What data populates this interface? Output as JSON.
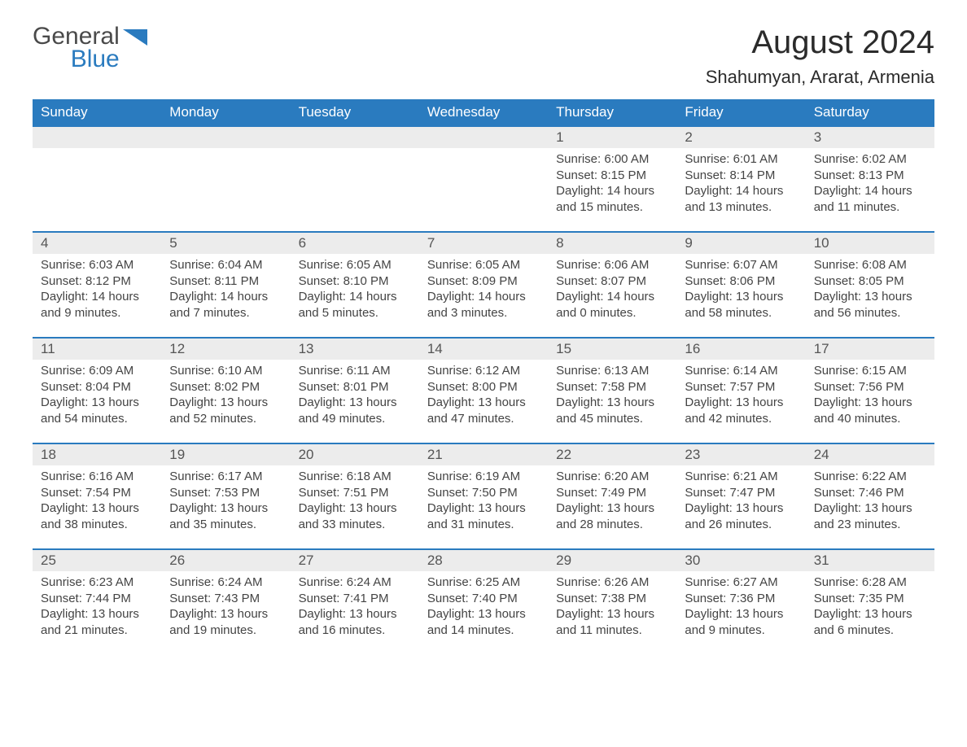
{
  "logo": {
    "word1": "General",
    "word2": "Blue"
  },
  "header": {
    "month_title": "August 2024",
    "location": "Shahumyan, Ararat, Armenia"
  },
  "colors": {
    "header_blue": "#2a7bbf",
    "band_gray": "#ececec",
    "text_dark": "#333333",
    "text_mid": "#555555",
    "background": "#ffffff"
  },
  "typography": {
    "month_title_fontsize": 40,
    "location_fontsize": 22,
    "weekday_fontsize": 17,
    "daynum_fontsize": 17,
    "body_fontsize": 15
  },
  "weekdays": [
    "Sunday",
    "Monday",
    "Tuesday",
    "Wednesday",
    "Thursday",
    "Friday",
    "Saturday"
  ],
  "weeks": [
    [
      null,
      null,
      null,
      null,
      {
        "n": "1",
        "sunrise": "6:00 AM",
        "sunset": "8:15 PM",
        "dl_h": "14",
        "dl_m": "15"
      },
      {
        "n": "2",
        "sunrise": "6:01 AM",
        "sunset": "8:14 PM",
        "dl_h": "14",
        "dl_m": "13"
      },
      {
        "n": "3",
        "sunrise": "6:02 AM",
        "sunset": "8:13 PM",
        "dl_h": "14",
        "dl_m": "11"
      }
    ],
    [
      {
        "n": "4",
        "sunrise": "6:03 AM",
        "sunset": "8:12 PM",
        "dl_h": "14",
        "dl_m": "9"
      },
      {
        "n": "5",
        "sunrise": "6:04 AM",
        "sunset": "8:11 PM",
        "dl_h": "14",
        "dl_m": "7"
      },
      {
        "n": "6",
        "sunrise": "6:05 AM",
        "sunset": "8:10 PM",
        "dl_h": "14",
        "dl_m": "5"
      },
      {
        "n": "7",
        "sunrise": "6:05 AM",
        "sunset": "8:09 PM",
        "dl_h": "14",
        "dl_m": "3"
      },
      {
        "n": "8",
        "sunrise": "6:06 AM",
        "sunset": "8:07 PM",
        "dl_h": "14",
        "dl_m": "0"
      },
      {
        "n": "9",
        "sunrise": "6:07 AM",
        "sunset": "8:06 PM",
        "dl_h": "13",
        "dl_m": "58"
      },
      {
        "n": "10",
        "sunrise": "6:08 AM",
        "sunset": "8:05 PM",
        "dl_h": "13",
        "dl_m": "56"
      }
    ],
    [
      {
        "n": "11",
        "sunrise": "6:09 AM",
        "sunset": "8:04 PM",
        "dl_h": "13",
        "dl_m": "54"
      },
      {
        "n": "12",
        "sunrise": "6:10 AM",
        "sunset": "8:02 PM",
        "dl_h": "13",
        "dl_m": "52"
      },
      {
        "n": "13",
        "sunrise": "6:11 AM",
        "sunset": "8:01 PM",
        "dl_h": "13",
        "dl_m": "49"
      },
      {
        "n": "14",
        "sunrise": "6:12 AM",
        "sunset": "8:00 PM",
        "dl_h": "13",
        "dl_m": "47"
      },
      {
        "n": "15",
        "sunrise": "6:13 AM",
        "sunset": "7:58 PM",
        "dl_h": "13",
        "dl_m": "45"
      },
      {
        "n": "16",
        "sunrise": "6:14 AM",
        "sunset": "7:57 PM",
        "dl_h": "13",
        "dl_m": "42"
      },
      {
        "n": "17",
        "sunrise": "6:15 AM",
        "sunset": "7:56 PM",
        "dl_h": "13",
        "dl_m": "40"
      }
    ],
    [
      {
        "n": "18",
        "sunrise": "6:16 AM",
        "sunset": "7:54 PM",
        "dl_h": "13",
        "dl_m": "38"
      },
      {
        "n": "19",
        "sunrise": "6:17 AM",
        "sunset": "7:53 PM",
        "dl_h": "13",
        "dl_m": "35"
      },
      {
        "n": "20",
        "sunrise": "6:18 AM",
        "sunset": "7:51 PM",
        "dl_h": "13",
        "dl_m": "33"
      },
      {
        "n": "21",
        "sunrise": "6:19 AM",
        "sunset": "7:50 PM",
        "dl_h": "13",
        "dl_m": "31"
      },
      {
        "n": "22",
        "sunrise": "6:20 AM",
        "sunset": "7:49 PM",
        "dl_h": "13",
        "dl_m": "28"
      },
      {
        "n": "23",
        "sunrise": "6:21 AM",
        "sunset": "7:47 PM",
        "dl_h": "13",
        "dl_m": "26"
      },
      {
        "n": "24",
        "sunrise": "6:22 AM",
        "sunset": "7:46 PM",
        "dl_h": "13",
        "dl_m": "23"
      }
    ],
    [
      {
        "n": "25",
        "sunrise": "6:23 AM",
        "sunset": "7:44 PM",
        "dl_h": "13",
        "dl_m": "21"
      },
      {
        "n": "26",
        "sunrise": "6:24 AM",
        "sunset": "7:43 PM",
        "dl_h": "13",
        "dl_m": "19"
      },
      {
        "n": "27",
        "sunrise": "6:24 AM",
        "sunset": "7:41 PM",
        "dl_h": "13",
        "dl_m": "16"
      },
      {
        "n": "28",
        "sunrise": "6:25 AM",
        "sunset": "7:40 PM",
        "dl_h": "13",
        "dl_m": "14"
      },
      {
        "n": "29",
        "sunrise": "6:26 AM",
        "sunset": "7:38 PM",
        "dl_h": "13",
        "dl_m": "11"
      },
      {
        "n": "30",
        "sunrise": "6:27 AM",
        "sunset": "7:36 PM",
        "dl_h": "13",
        "dl_m": "9"
      },
      {
        "n": "31",
        "sunrise": "6:28 AM",
        "sunset": "7:35 PM",
        "dl_h": "13",
        "dl_m": "6"
      }
    ]
  ],
  "labels": {
    "sunrise_prefix": "Sunrise: ",
    "sunset_prefix": "Sunset: ",
    "daylight_prefix": "Daylight: ",
    "hours_word": " hours",
    "and_word": "and ",
    "minutes_word": " minutes."
  }
}
